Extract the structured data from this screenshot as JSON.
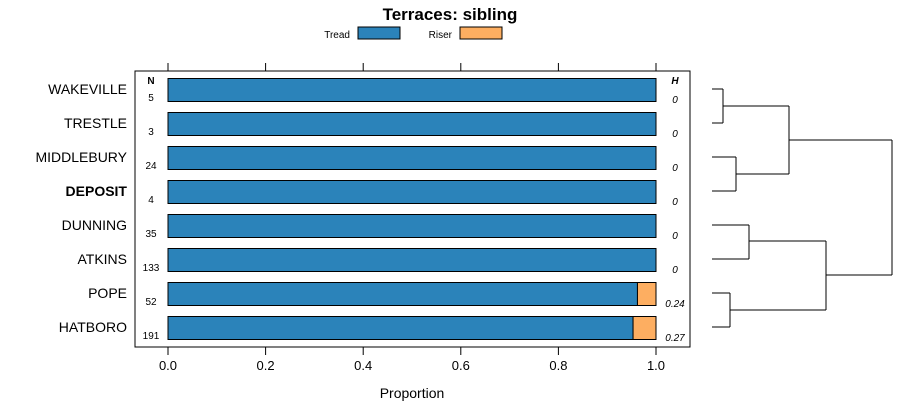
{
  "chart_data": {
    "type": "bar",
    "orientation": "horizontal",
    "stacked": true,
    "title": "Terraces: sibling",
    "xlabel": "Proportion",
    "xlim": [
      0,
      1
    ],
    "x_ticks": [
      "0.0",
      "0.2",
      "0.4",
      "0.6",
      "0.8",
      "1.0"
    ],
    "legend": {
      "placement": "top-center",
      "entries": [
        "Tread",
        "Riser"
      ]
    },
    "colors": {
      "Tread": "#2b83ba",
      "Riser": "#fdae61"
    },
    "n_header": "N",
    "h_header": "H",
    "categories": [
      "WAKEVILLE",
      "TRESTLE",
      "MIDDLEBURY",
      "DEPOSIT",
      "DUNNING",
      "ATKINS",
      "POPE",
      "HATBORO"
    ],
    "highlighted_category": "DEPOSIT",
    "n": [
      "5",
      "3",
      "24",
      "4",
      "35",
      "133",
      "52",
      "191"
    ],
    "h": [
      "0",
      "0",
      "0",
      "0",
      "0",
      "0",
      "0.24",
      "0.27"
    ],
    "series": [
      {
        "name": "Tread",
        "values": [
          1,
          1,
          1,
          1,
          1,
          1,
          0.962,
          0.953
        ]
      },
      {
        "name": "Riser",
        "values": [
          0,
          0,
          0,
          0,
          0,
          0,
          0.038,
          0.047
        ]
      }
    ],
    "dendrogram": true
  }
}
